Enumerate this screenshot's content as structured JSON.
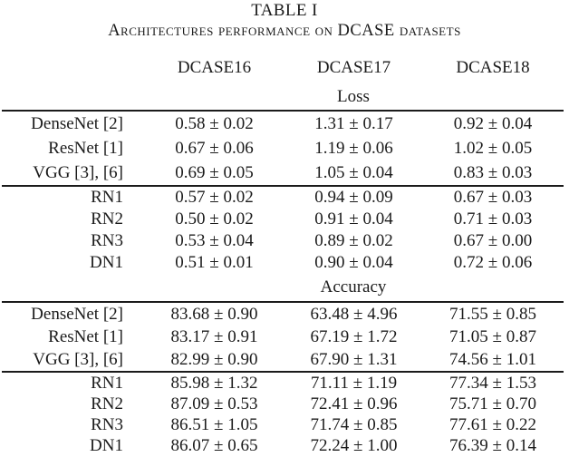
{
  "title": "TABLE I",
  "caption": "Architectures performance on DCASE datasets",
  "columns": [
    "DCASE16",
    "DCASE17",
    "DCASE18"
  ],
  "sections": [
    {
      "name": "Loss",
      "groups": [
        {
          "rows": [
            {
              "label": "DenseNet [2]",
              "values": [
                "0.58 ± 0.02",
                "1.31 ± 0.17",
                "0.92 ± 0.04"
              ]
            },
            {
              "label": "ResNet [1]",
              "values": [
                "0.67 ± 0.06",
                "1.19 ± 0.06",
                "1.02 ± 0.05"
              ]
            },
            {
              "label": "VGG [3], [6]",
              "values": [
                "0.69 ± 0.05",
                "1.05 ± 0.04",
                "0.83 ± 0.03"
              ]
            }
          ]
        },
        {
          "rows": [
            {
              "label": "RN1",
              "values": [
                "0.57 ± 0.02",
                "0.94 ± 0.09",
                "0.67 ± 0.03"
              ]
            },
            {
              "label": "RN2",
              "values": [
                "0.50 ± 0.02",
                "0.91 ± 0.04",
                "0.71 ± 0.03"
              ]
            },
            {
              "label": "RN3",
              "values": [
                "0.53 ± 0.04",
                "0.89 ± 0.02",
                "0.67 ± 0.00"
              ]
            },
            {
              "label": "DN1",
              "values": [
                "0.51 ± 0.01",
                "0.90 ± 0.04",
                "0.72 ± 0.06"
              ]
            }
          ]
        }
      ]
    },
    {
      "name": "Accuracy",
      "groups": [
        {
          "rows": [
            {
              "label": "DenseNet [2]",
              "values": [
                "83.68 ± 0.90",
                "63.48 ± 4.96",
                "71.55 ± 0.85"
              ]
            },
            {
              "label": "ResNet [1]",
              "values": [
                "83.17 ± 0.91",
                "67.19 ± 1.72",
                "71.05 ± 0.87"
              ]
            },
            {
              "label": "VGG [3], [6]",
              "values": [
                "82.99 ± 0.90",
                "67.90 ± 1.31",
                "74.56 ± 1.01"
              ]
            }
          ]
        },
        {
          "rows": [
            {
              "label": "RN1",
              "values": [
                "85.98 ± 1.32",
                "71.11 ± 1.19",
                "77.34 ± 1.53"
              ]
            },
            {
              "label": "RN2",
              "values": [
                "87.09 ± 0.53",
                "72.41 ± 0.96",
                "75.71 ± 0.70"
              ]
            },
            {
              "label": "RN3",
              "values": [
                "86.51 ± 1.05",
                "71.74 ± 0.85",
                "77.61 ± 0.22"
              ]
            },
            {
              "label": "DN1",
              "values": [
                "86.07 ± 0.65",
                "72.24 ± 1.00",
                "76.39 ± 0.14"
              ]
            }
          ]
        }
      ]
    }
  ]
}
